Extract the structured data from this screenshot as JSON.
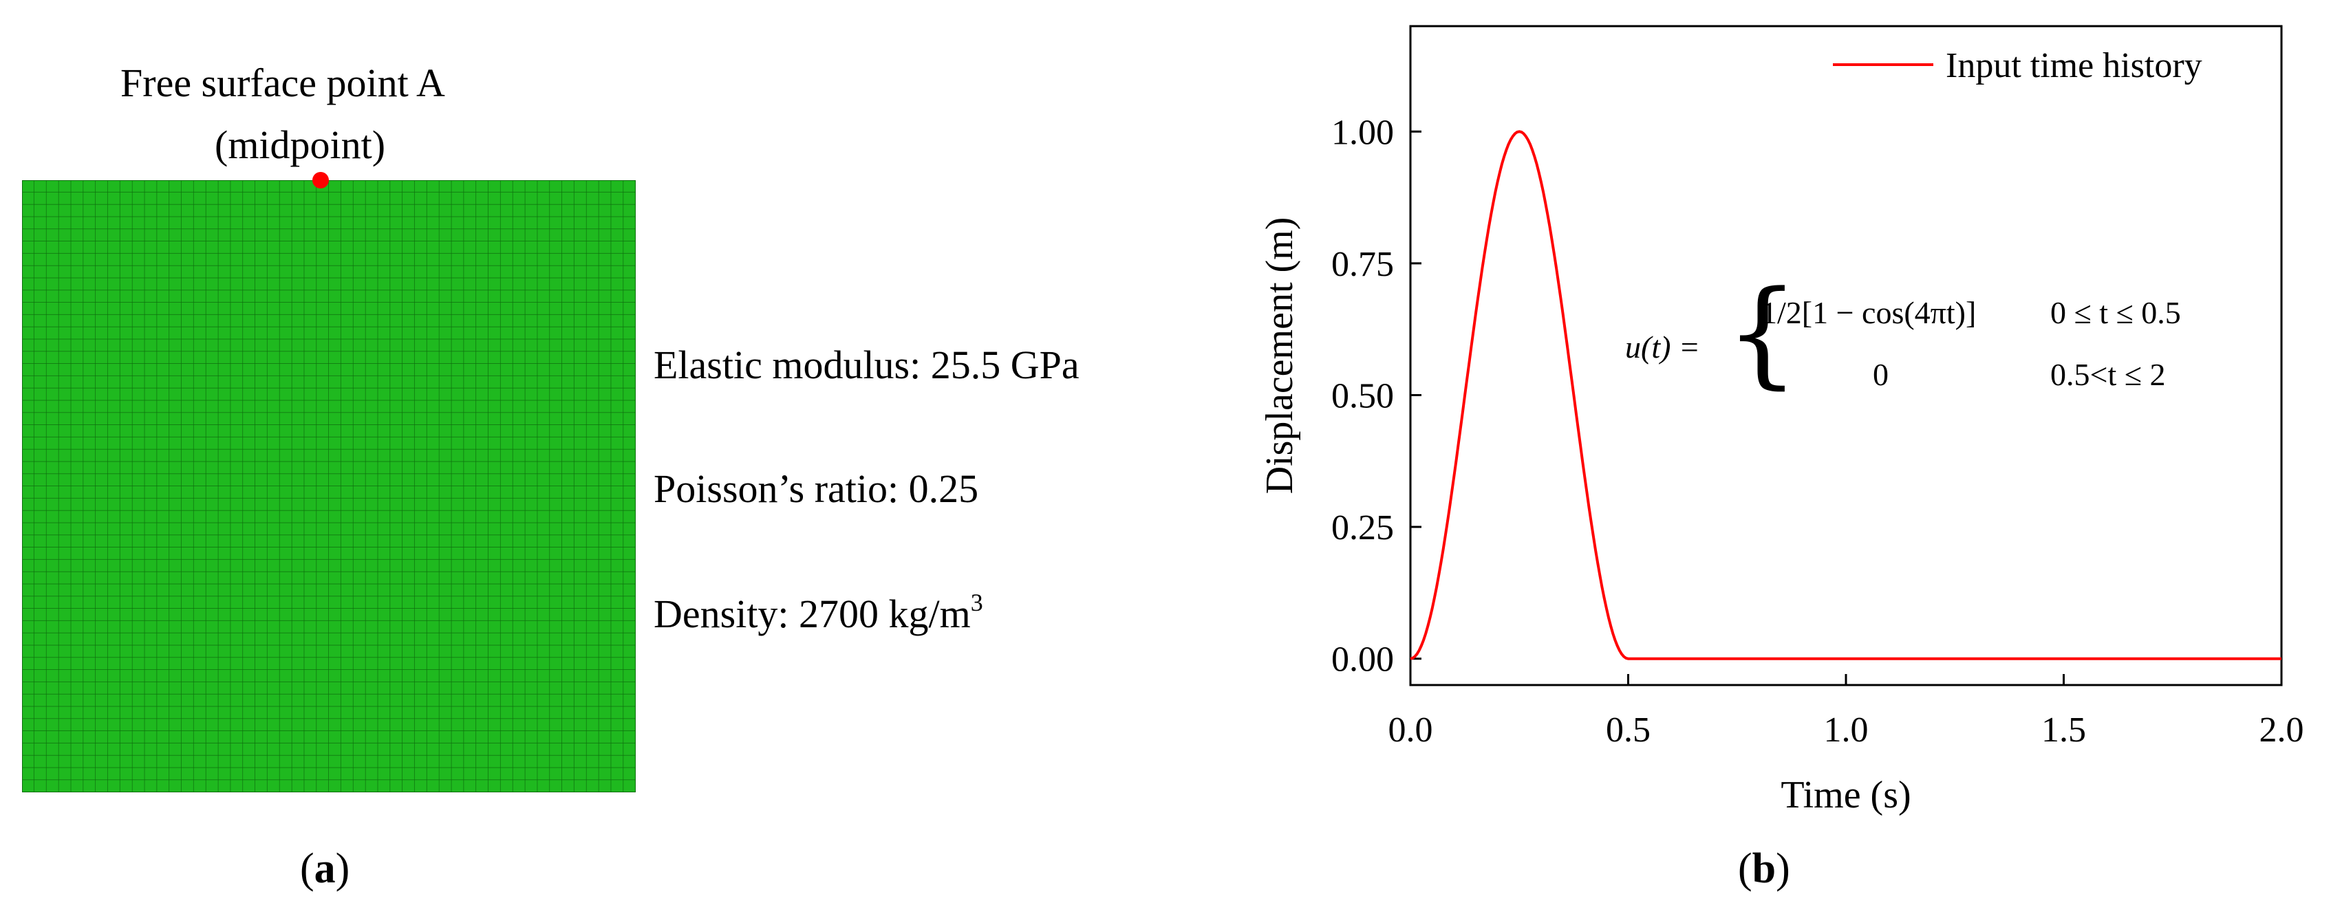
{
  "panel_a": {
    "point_label_line1": "Free surface point A",
    "point_label_line2": "(midpoint)",
    "props": {
      "elastic_modulus": "Elastic modulus: 25.5 GPa",
      "poisson_ratio": "Poisson’s ratio: 0.25",
      "density_prefix": "Density: 2700 kg/m",
      "density_sup": "3"
    },
    "caption_letter": "a",
    "mesh_color": "#1fb91f",
    "point_color": "#ff0000"
  },
  "panel_b": {
    "caption_letter": "b",
    "equation": {
      "lhs": "u(t) =",
      "case1_expr": "1/2[1 − cos(4πt)]",
      "case1_cond": "0 ≤ t ≤ 0.5",
      "case2_expr": "0",
      "case2_cond": "0.5<t ≤ 2"
    }
  },
  "chart_data": {
    "type": "line",
    "title": "",
    "xlabel": "Time (s)",
    "ylabel": "Displacement (m)",
    "xlim": [
      0,
      2
    ],
    "ylim": [
      -0.05,
      1.2
    ],
    "xticks": [
      0.0,
      0.5,
      1.0,
      1.5,
      2.0
    ],
    "xtick_labels": [
      "0.0",
      "0.5",
      "1.0",
      "1.5",
      "2.0"
    ],
    "yticks": [
      0.0,
      0.25,
      0.5,
      0.75,
      1.0
    ],
    "ytick_labels": [
      "0.00",
      "0.25",
      "0.50",
      "0.75",
      "1.00"
    ],
    "legend": "top-right",
    "grid": false,
    "series": [
      {
        "name": "Input time history",
        "color": "#ff0000",
        "x": [
          0.0,
          0.025,
          0.05,
          0.075,
          0.1,
          0.125,
          0.15,
          0.175,
          0.2,
          0.225,
          0.25,
          0.275,
          0.3,
          0.325,
          0.35,
          0.375,
          0.4,
          0.425,
          0.45,
          0.475,
          0.5,
          1.0,
          1.5,
          2.0
        ],
        "y": [
          0.0,
          0.0245,
          0.0955,
          0.2061,
          0.3455,
          0.5,
          0.6545,
          0.7939,
          0.9045,
          0.9755,
          1.0,
          0.9755,
          0.9045,
          0.7939,
          0.6545,
          0.5,
          0.3455,
          0.2061,
          0.0955,
          0.0245,
          0.0,
          0.0,
          0.0,
          0.0
        ]
      }
    ]
  }
}
